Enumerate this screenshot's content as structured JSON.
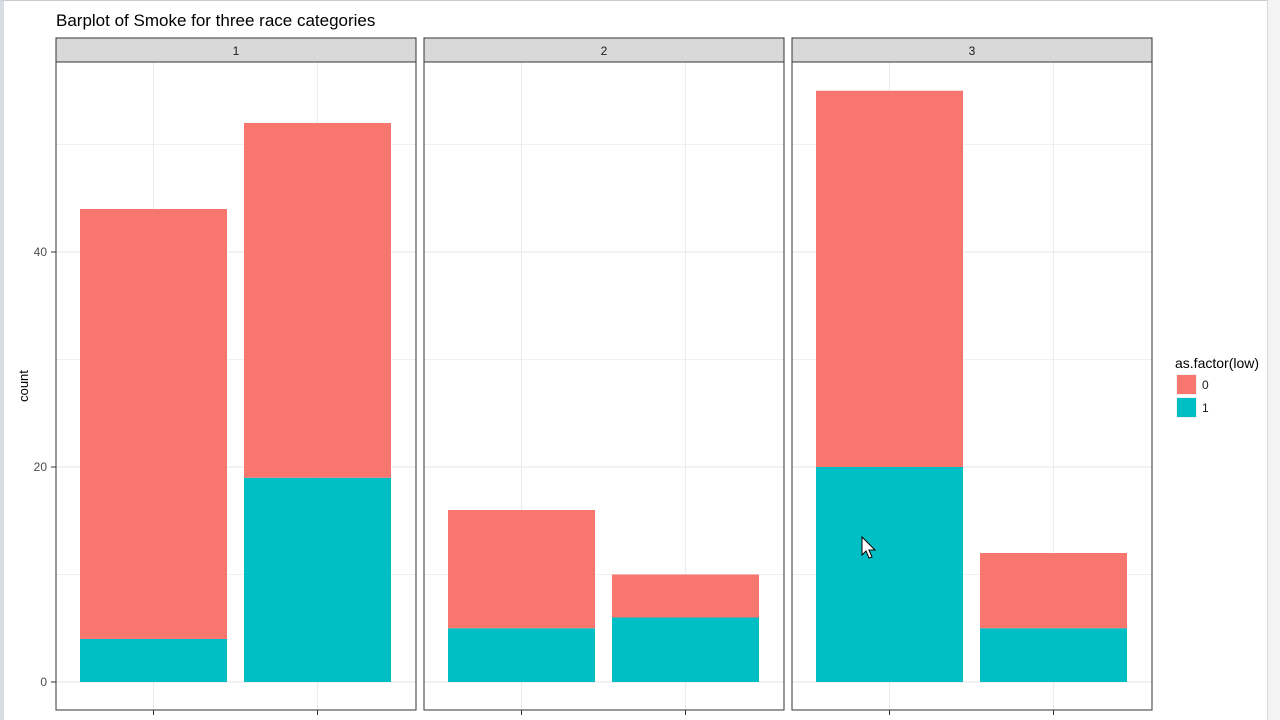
{
  "window": {
    "accent": "#d9dde3"
  },
  "chart_data": {
    "type": "bar",
    "stacked": true,
    "title": "Barplot of Smoke for three race categories",
    "xlabel": "",
    "ylabel": "count",
    "ylim": [
      0,
      55
    ],
    "yticks": [
      0,
      20,
      40
    ],
    "grid": true,
    "panel_background": "#ffffff",
    "strip_background": "#d9d9d9",
    "facets": [
      {
        "label": "1",
        "bars": [
          {
            "segments": {
              "0": 40,
              "1": 4
            }
          },
          {
            "segments": {
              "0": 33,
              "1": 19
            }
          }
        ]
      },
      {
        "label": "2",
        "bars": [
          {
            "segments": {
              "0": 11,
              "1": 5
            }
          },
          {
            "segments": {
              "0": 4,
              "1": 6
            }
          }
        ]
      },
      {
        "label": "3",
        "bars": [
          {
            "segments": {
              "0": 35,
              "1": 20
            }
          },
          {
            "segments": {
              "0": 7,
              "1": 5
            }
          }
        ]
      }
    ],
    "legend": {
      "title": "as.factor(low)",
      "position": "right",
      "items": [
        {
          "key": "0",
          "label": "0",
          "color": "#f8766d"
        },
        {
          "key": "1",
          "label": "1",
          "color": "#00bfc4"
        }
      ]
    }
  }
}
